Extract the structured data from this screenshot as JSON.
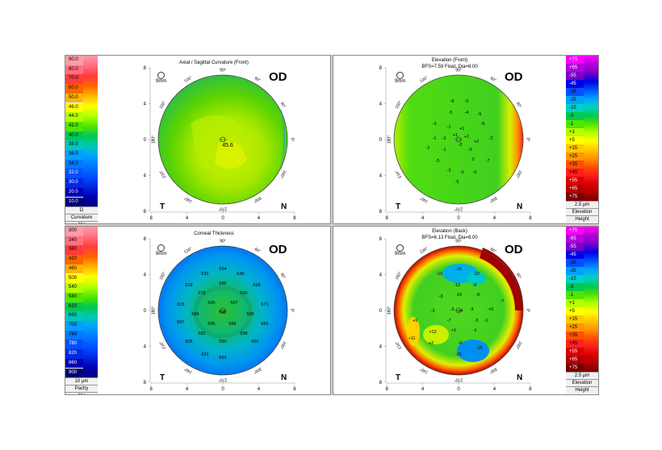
{
  "eye": "OD",
  "zoom_label": "9mm",
  "dir_t": "T",
  "dir_n": "N",
  "degrees": [
    "90°",
    "60°",
    "30°",
    "0°",
    "330°",
    "300°",
    "270°",
    "240°",
    "210°",
    "180°",
    "150°",
    "120°"
  ],
  "x_ticks": [
    "8",
    "4",
    "0",
    "4",
    "8"
  ],
  "y_ticks": [
    "8",
    "4",
    "0",
    "4",
    "8"
  ],
  "colors": {
    "panel_border": "#8a8a8a",
    "frame": "#d4d0c8",
    "ring": "#444444"
  },
  "panels": {
    "axial": {
      "title": "Axial / Sagittal Curvature (Front)",
      "center_value": "45.6",
      "scale_values": [
        "90.0",
        "80.0",
        "70.0",
        "60.0",
        "50.0",
        "46.0",
        "44.0",
        "42.0",
        "40.0",
        "38.0",
        "36.0",
        "34.0",
        "32.0",
        "30.0",
        "20.0",
        "10.0"
      ],
      "scale_colors": [
        "#ff9aa6",
        "#ff7080",
        "#ff3c3c",
        "#ff6400",
        "#ffb400",
        "#ffff00",
        "#b4ff00",
        "#50e600",
        "#00c850",
        "#00c8b4",
        "#00a0ff",
        "#0078ff",
        "#0050ff",
        "#0028e6",
        "#0000b4",
        "#000078"
      ],
      "footer": [
        "D",
        "Curvature",
        "Abs"
      ]
    },
    "elev_front": {
      "title": "Elevation (Front)",
      "subtitle": "BFS=7.59 Float, Dia=8.00",
      "scale_values": [
        "+75",
        "+65",
        "-55",
        "-45",
        "-35",
        "-25",
        "-15",
        "-5",
        "-1",
        "+1",
        "+5",
        "+15",
        "+25",
        "+35",
        "+45",
        "+55",
        "+65",
        "+75"
      ],
      "scale_colors": [
        "#ff00ff",
        "#b400dc",
        "#7800c8",
        "#0000e6",
        "#0050ff",
        "#00a0ff",
        "#00d2c8",
        "#00c850",
        "#50e600",
        "#b4ff00",
        "#ffff00",
        "#ffc800",
        "#ff9600",
        "#ff5000",
        "#ff1e1e",
        "#dc0000",
        "#b40000",
        "#780000"
      ],
      "footer": [
        "2.5 µm",
        "Elevation",
        "Height"
      ],
      "values": [
        {
          "t": "-8",
          "x": -8,
          "y": -46
        },
        {
          "t": "-5",
          "x": 10,
          "y": -46
        },
        {
          "t": "-5",
          "x": -10,
          "y": -32
        },
        {
          "t": "-4",
          "x": 10,
          "y": -32
        },
        {
          "t": "-5",
          "x": 26,
          "y": -30
        },
        {
          "t": "-3",
          "x": -30,
          "y": -18
        },
        {
          "t": "-1",
          "x": -12,
          "y": -14
        },
        {
          "t": "+1",
          "x": 4,
          "y": -12
        },
        {
          "t": "-5",
          "x": 30,
          "y": -18
        },
        {
          "t": "-1",
          "x": -30,
          "y": 0
        },
        {
          "t": "-2",
          "x": -18,
          "y": 0
        },
        {
          "t": "+1",
          "x": -4,
          "y": -4
        },
        {
          "t": "+1",
          "x": 10,
          "y": -2
        },
        {
          "t": "+2",
          "x": 22,
          "y": 4
        },
        {
          "t": "-2",
          "x": 40,
          "y": 0
        },
        {
          "t": "-2",
          "x": -38,
          "y": 12
        },
        {
          "t": "-1",
          "x": -18,
          "y": 14
        },
        {
          "t": "-2",
          "x": 2,
          "y": 8
        },
        {
          "t": "-3",
          "x": 14,
          "y": 14
        },
        {
          "t": "-5",
          "x": -26,
          "y": 28
        },
        {
          "t": "0",
          "x": 18,
          "y": 26
        },
        {
          "t": "-7",
          "x": 36,
          "y": 28
        },
        {
          "t": "-3",
          "x": -12,
          "y": 40
        },
        {
          "t": "-3",
          "x": 4,
          "y": 42
        },
        {
          "t": "-5",
          "x": 20,
          "y": 42
        },
        {
          "t": "-5",
          "x": -2,
          "y": 54
        }
      ]
    },
    "pachy": {
      "title": "Corneal Thickness",
      "scale_values": [
        "300",
        "340",
        "380",
        "420",
        "460",
        "500",
        "540",
        "580",
        "620",
        "660",
        "700",
        "740",
        "780",
        "820",
        "860",
        "900"
      ],
      "scale_colors": [
        "#ff9aa6",
        "#ff7080",
        "#ff3c3c",
        "#ff6400",
        "#ffb400",
        "#ffff00",
        "#b4ff00",
        "#50e600",
        "#00c850",
        "#00c8b4",
        "#00a0ff",
        "#0078ff",
        "#0050ff",
        "#0028e6",
        "#0000b4",
        "#000078"
      ],
      "footer": [
        "10 µm",
        "Pachy",
        "Abs"
      ],
      "values": [
        {
          "t": "654",
          "x": 0,
          "y": -50
        },
        {
          "t": "631",
          "x": -22,
          "y": -44
        },
        {
          "t": "639",
          "x": 22,
          "y": -44
        },
        {
          "t": "586",
          "x": 0,
          "y": -32
        },
        {
          "t": "619",
          "x": -42,
          "y": -30
        },
        {
          "t": "668",
          "x": 42,
          "y": -30
        },
        {
          "t": "578",
          "x": -26,
          "y": -20
        },
        {
          "t": "600",
          "x": 26,
          "y": -20
        },
        {
          "t": "615",
          "x": -52,
          "y": -6
        },
        {
          "t": "545",
          "x": -14,
          "y": -8
        },
        {
          "t": "557",
          "x": 14,
          "y": -8
        },
        {
          "t": "671",
          "x": 52,
          "y": -6
        },
        {
          "t": "584",
          "x": -34,
          "y": 6
        },
        {
          "t": "542",
          "x": 0,
          "y": 4
        },
        {
          "t": "599",
          "x": 34,
          "y": 6
        },
        {
          "t": "607",
          "x": -52,
          "y": 16
        },
        {
          "t": "545",
          "x": -14,
          "y": 18
        },
        {
          "t": "568",
          "x": 12,
          "y": 18
        },
        {
          "t": "665",
          "x": 52,
          "y": 18
        },
        {
          "t": "582",
          "x": -26,
          "y": 30
        },
        {
          "t": "598",
          "x": 26,
          "y": 30
        },
        {
          "t": "605",
          "x": -42,
          "y": 40
        },
        {
          "t": "590",
          "x": 0,
          "y": 40
        },
        {
          "t": "665",
          "x": 40,
          "y": 40
        },
        {
          "t": "621",
          "x": -22,
          "y": 56
        },
        {
          "t": "653",
          "x": 0,
          "y": 60
        }
      ]
    },
    "elev_back": {
      "title": "Elevation (Back)",
      "subtitle": "BFS=6.13 Float, Dia=8.00",
      "scale_values": [
        "+75",
        "-65",
        "-55",
        "-45",
        "-35",
        "-25",
        "-15",
        "-5",
        "-1",
        "+1",
        "+5",
        "+15",
        "+25",
        "+35",
        "+45",
        "+55",
        "+65",
        "+75"
      ],
      "scale_colors": [
        "#ff00ff",
        "#b400dc",
        "#7800c8",
        "#0000e6",
        "#0050ff",
        "#00a0ff",
        "#00d2c8",
        "#00c850",
        "#50e600",
        "#b4ff00",
        "#ffff00",
        "#ffc800",
        "#ff9600",
        "#ff5000",
        "#ff1e1e",
        "#dc0000",
        "#b40000",
        "#780000"
      ],
      "footer": [
        "2.5 µm",
        "Elevation",
        "Height"
      ],
      "values": [
        {
          "t": "-26",
          "x": 0,
          "y": -50
        },
        {
          "t": "-13",
          "x": -24,
          "y": -44
        },
        {
          "t": "-22",
          "x": 22,
          "y": -44
        },
        {
          "t": "-12",
          "x": -2,
          "y": -30
        },
        {
          "t": "-6",
          "x": 20,
          "y": -30
        },
        {
          "t": "-3",
          "x": -22,
          "y": -16
        },
        {
          "t": "-19",
          "x": 0,
          "y": -18
        },
        {
          "t": "-6",
          "x": 24,
          "y": -18
        },
        {
          "t": "-7",
          "x": 54,
          "y": -10
        },
        {
          "t": "-3",
          "x": -32,
          "y": 2
        },
        {
          "t": "-3",
          "x": -8,
          "y": 0
        },
        {
          "t": "+4",
          "x": 2,
          "y": 2
        },
        {
          "t": "-3",
          "x": 16,
          "y": 0
        },
        {
          "t": "+5",
          "x": 40,
          "y": 0
        },
        {
          "t": "+9",
          "x": -54,
          "y": 14
        },
        {
          "t": "-7",
          "x": -12,
          "y": 14
        },
        {
          "t": "-3",
          "x": 22,
          "y": 14
        },
        {
          "t": "-1",
          "x": 34,
          "y": 14
        },
        {
          "t": "+12",
          "x": -32,
          "y": 28
        },
        {
          "t": "+1",
          "x": -6,
          "y": 26
        },
        {
          "t": "-1",
          "x": 20,
          "y": 26
        },
        {
          "t": "+11",
          "x": -58,
          "y": 36
        },
        {
          "t": "+2",
          "x": -34,
          "y": 42
        },
        {
          "t": "-6",
          "x": 2,
          "y": 42
        },
        {
          "t": "-25",
          "x": 26,
          "y": 48
        },
        {
          "t": "-21",
          "x": 0,
          "y": 56
        }
      ]
    }
  }
}
